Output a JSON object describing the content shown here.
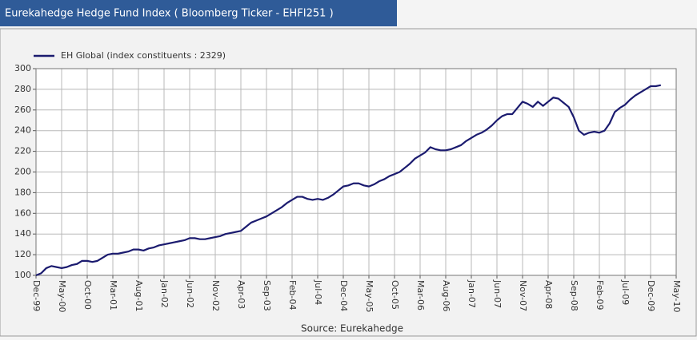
{
  "chart_data": {
    "type": "line",
    "title": "Eurekahedge Hedge Fund Index ( Bloomberg Ticker - EHFI251 )",
    "source": "Source: Eurekahedge",
    "x": [
      "Dec-99",
      "Jan-00",
      "Feb-00",
      "Mar-00",
      "Apr-00",
      "May-00",
      "Jun-00",
      "Jul-00",
      "Aug-00",
      "Sep-00",
      "Oct-00",
      "Nov-00",
      "Dec-00",
      "Jan-01",
      "Feb-01",
      "Mar-01",
      "Apr-01",
      "May-01",
      "Jun-01",
      "Jul-01",
      "Aug-01",
      "Sep-01",
      "Oct-01",
      "Nov-01",
      "Dec-01",
      "Jan-02",
      "Feb-02",
      "Mar-02",
      "Apr-02",
      "May-02",
      "Jun-02",
      "Jul-02",
      "Aug-02",
      "Sep-02",
      "Oct-02",
      "Nov-02",
      "Dec-02",
      "Jan-03",
      "Feb-03",
      "Mar-03",
      "Apr-03",
      "May-03",
      "Jun-03",
      "Jul-03",
      "Aug-03",
      "Sep-03",
      "Oct-03",
      "Nov-03",
      "Dec-03",
      "Jan-04",
      "Feb-04",
      "Mar-04",
      "Apr-04",
      "May-04",
      "Jun-04",
      "Jul-04",
      "Aug-04",
      "Sep-04",
      "Oct-04",
      "Nov-04",
      "Dec-04",
      "Jan-05",
      "Feb-05",
      "Mar-05",
      "Apr-05",
      "May-05",
      "Jun-05",
      "Jul-05",
      "Aug-05",
      "Sep-05",
      "Oct-05",
      "Nov-05",
      "Dec-05",
      "Jan-06",
      "Feb-06",
      "Mar-06",
      "Apr-06",
      "May-06",
      "Jun-06",
      "Jul-06",
      "Aug-06",
      "Sep-06",
      "Oct-06",
      "Nov-06",
      "Dec-06",
      "Jan-07",
      "Feb-07",
      "Mar-07",
      "Apr-07",
      "May-07",
      "Jun-07",
      "Jul-07",
      "Aug-07",
      "Sep-07",
      "Oct-07",
      "Nov-07",
      "Dec-07",
      "Jan-08",
      "Feb-08",
      "Mar-08",
      "Apr-08",
      "May-08",
      "Jun-08",
      "Jul-08",
      "Aug-08",
      "Sep-08",
      "Oct-08",
      "Nov-08",
      "Dec-08",
      "Jan-09",
      "Feb-09",
      "Mar-09",
      "Apr-09",
      "May-09",
      "Jun-09",
      "Jul-09",
      "Aug-09",
      "Sep-09",
      "Oct-09",
      "Nov-09",
      "Dec-09",
      "Jan-10",
      "Feb-10"
    ],
    "series": [
      {
        "name": "EH Global (index constituents : 2329)",
        "color": "#1b1b6f",
        "values": [
          100,
          102,
          107,
          109,
          108,
          107,
          108,
          110,
          111,
          114,
          114,
          113,
          114,
          117,
          120,
          121,
          121,
          122,
          123,
          125,
          125,
          124,
          126,
          127,
          129,
          130,
          131,
          132,
          133,
          134,
          136,
          136,
          135,
          135,
          136,
          137,
          138,
          140,
          141,
          142,
          143,
          147,
          151,
          153,
          155,
          157,
          160,
          163,
          166,
          170,
          173,
          176,
          176,
          174,
          173,
          174,
          173,
          175,
          178,
          182,
          186,
          187,
          189,
          189,
          187,
          186,
          188,
          191,
          193,
          196,
          198,
          200,
          204,
          208,
          213,
          216,
          219,
          224,
          222,
          221,
          221,
          222,
          224,
          226,
          230,
          233,
          236,
          238,
          241,
          245,
          250,
          254,
          256,
          256,
          262,
          268,
          266,
          263,
          268,
          264,
          268,
          272,
          271,
          267,
          263,
          253,
          240,
          236,
          238,
          239,
          238,
          240,
          247,
          258,
          262,
          265,
          270,
          274,
          277,
          280,
          283,
          283,
          284
        ]
      }
    ],
    "xlim": [
      "Dec-99",
      "May-10"
    ],
    "xticks": [
      "Dec-99",
      "May-00",
      "Oct-00",
      "Mar-01",
      "Aug-01",
      "Jan-02",
      "Jun-02",
      "Nov-02",
      "Apr-03",
      "Sep-03",
      "Feb-04",
      "Jul-04",
      "Dec-04",
      "May-05",
      "Oct-05",
      "Mar-06",
      "Aug-06",
      "Jan-07",
      "Jun-07",
      "Nov-07",
      "Apr-08",
      "Sep-08",
      "Feb-09",
      "Jul-09",
      "Dec-09",
      "May-10"
    ],
    "ylim": [
      100,
      300
    ],
    "yticks": [
      100,
      120,
      140,
      160,
      180,
      200,
      220,
      240,
      260,
      280,
      300
    ],
    "grid": true,
    "legend": "top-left"
  }
}
